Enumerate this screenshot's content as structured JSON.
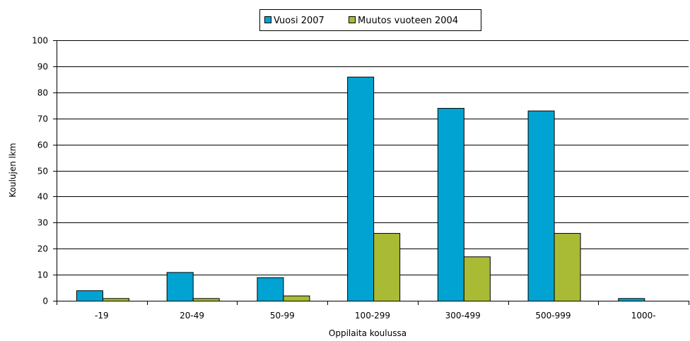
{
  "chart_data": {
    "type": "bar",
    "title": "",
    "xlabel": "Oppilaita koulussa",
    "ylabel": "Koulujen lkm",
    "categories": [
      "-19",
      "20-49",
      "50-99",
      "100-299",
      "300-499",
      "500-999",
      "1000-"
    ],
    "series": [
      {
        "name": "Vuosi 2007",
        "color": "#00a3d1",
        "values": [
          4,
          11,
          9,
          86,
          74,
          73,
          1
        ]
      },
      {
        "name": "Muutos vuoteen 2004",
        "color": "#a9bb35",
        "values": [
          1,
          1,
          2,
          26,
          17,
          26,
          0
        ]
      }
    ],
    "ylim": [
      0,
      100
    ],
    "yticks": [
      0,
      10,
      20,
      30,
      40,
      50,
      60,
      70,
      80,
      90,
      100
    ],
    "grid": true,
    "legend_position": "top-center"
  }
}
